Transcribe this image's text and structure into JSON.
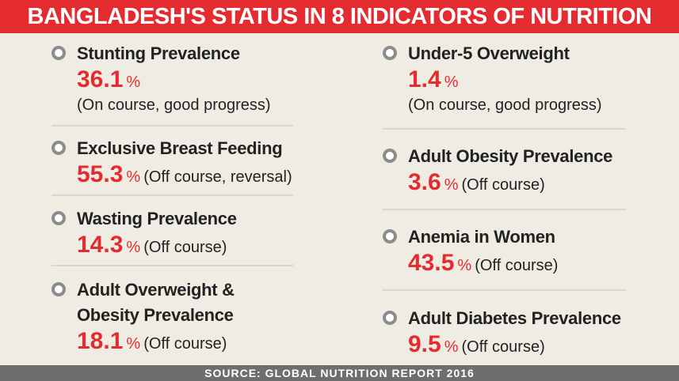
{
  "title": "BANGLADESH'S STATUS IN 8 INDICATORS OF NUTRITION",
  "indicators": [
    {
      "name": "Stunting Prevalence",
      "value": 36.1,
      "unit": "%",
      "status": "(On course, good progress)"
    },
    {
      "name": "Exclusive Breast Feeding",
      "value": 55.3,
      "unit": "%",
      "status": "(Off course, reversal)"
    },
    {
      "name": "Wasting Prevalence",
      "value": 14.3,
      "unit": "%",
      "status": "(Off course)"
    },
    {
      "name": "Adult Overweight & Obesity Prevalence",
      "value": 18.1,
      "unit": "%",
      "status": "(Off course)"
    },
    {
      "name": "Under-5 Overweight",
      "value": 1.4,
      "unit": "%",
      "status": "(On course, good progress)"
    },
    {
      "name": "Adult Obesity Prevalence",
      "value": 3.6,
      "unit": "%",
      "status": "(Off course)"
    },
    {
      "name": "Anemia in Women",
      "value": 43.5,
      "unit": "%",
      "status": "(Off course)"
    },
    {
      "name": "Adult Diabetes Prevalence",
      "value": 9.5,
      "unit": "%",
      "status": "(Off course)"
    }
  ],
  "source": "SOURCE: GLOBAL NUTRITION REPORT 2016"
}
